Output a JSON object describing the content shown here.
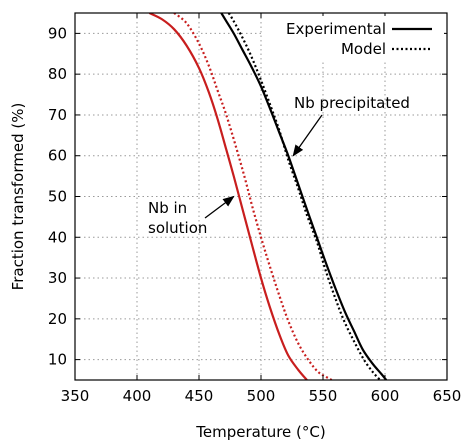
{
  "chart_data": {
    "type": "line",
    "xlabel": "Temperature (°C)",
    "ylabel": "Fraction transformed (%)",
    "xlim": [
      350,
      650
    ],
    "ylim": [
      5,
      95
    ],
    "xticks": [
      350,
      400,
      450,
      500,
      550,
      600,
      650
    ],
    "yticks": [
      10,
      20,
      30,
      40,
      50,
      60,
      70,
      80,
      90
    ],
    "grid": true,
    "legend": {
      "placement": "top-right",
      "entries": [
        {
          "label": "Experimental",
          "style": "solid"
        },
        {
          "label": "Model",
          "style": "dotted"
        }
      ]
    },
    "series": [
      {
        "group": "Nb precipitated",
        "kind": "Experimental",
        "color": "#000000",
        "style": "solid",
        "x": [
          468,
          472,
          478,
          485,
          492,
          500,
          508,
          515,
          522,
          530,
          538,
          545,
          552,
          560,
          568,
          575,
          582,
          590,
          597,
          601
        ],
        "y": [
          95,
          93,
          90,
          86,
          82,
          77,
          71,
          65.5,
          60,
          53,
          46,
          40,
          34,
          27.5,
          21.5,
          17,
          12.5,
          9,
          6.5,
          5
        ]
      },
      {
        "group": "Nb precipitated",
        "kind": "Model",
        "color": "#000000",
        "style": "dotted",
        "x": [
          474,
          478,
          485,
          492,
          500,
          508,
          515,
          522,
          530,
          537,
          545,
          552,
          560,
          567,
          575,
          583,
          590,
          596
        ],
        "y": [
          95,
          93,
          89,
          84.5,
          78.5,
          72,
          66,
          59,
          52,
          45.5,
          39,
          32,
          25,
          19.5,
          14.5,
          10,
          7,
          5
        ]
      },
      {
        "group": "Nb in solution",
        "kind": "Experimental",
        "color": "#c81e1e",
        "style": "solid",
        "x": [
          410,
          420,
          430,
          440,
          450,
          458,
          465,
          472,
          478,
          485,
          492,
          500,
          507,
          515,
          522,
          530,
          537
        ],
        "y": [
          95,
          93.5,
          91,
          87,
          81.5,
          75.5,
          69,
          61.5,
          55,
          47,
          39,
          30,
          23,
          16,
          11,
          7.5,
          5
        ]
      },
      {
        "group": "Nb in solution",
        "kind": "Model",
        "color": "#c81e1e",
        "style": "dotted",
        "x": [
          430,
          440,
          450,
          458,
          465,
          472,
          480,
          487,
          493,
          500,
          507,
          515,
          522,
          530,
          538,
          546,
          554,
          557
        ],
        "y": [
          95,
          92.5,
          87.5,
          82,
          76,
          70,
          62,
          54.5,
          47.5,
          40,
          33,
          25.5,
          19.5,
          14,
          10,
          7,
          5.5,
          5
        ]
      }
    ],
    "annotations": [
      {
        "lines": [
          "Nb precipitated"
        ],
        "arrow_to": {
          "x": 526,
          "y": 60
        }
      },
      {
        "lines": [
          "Nb in",
          "solution"
        ],
        "arrow_to": {
          "x": 478,
          "y": 50
        }
      }
    ]
  }
}
